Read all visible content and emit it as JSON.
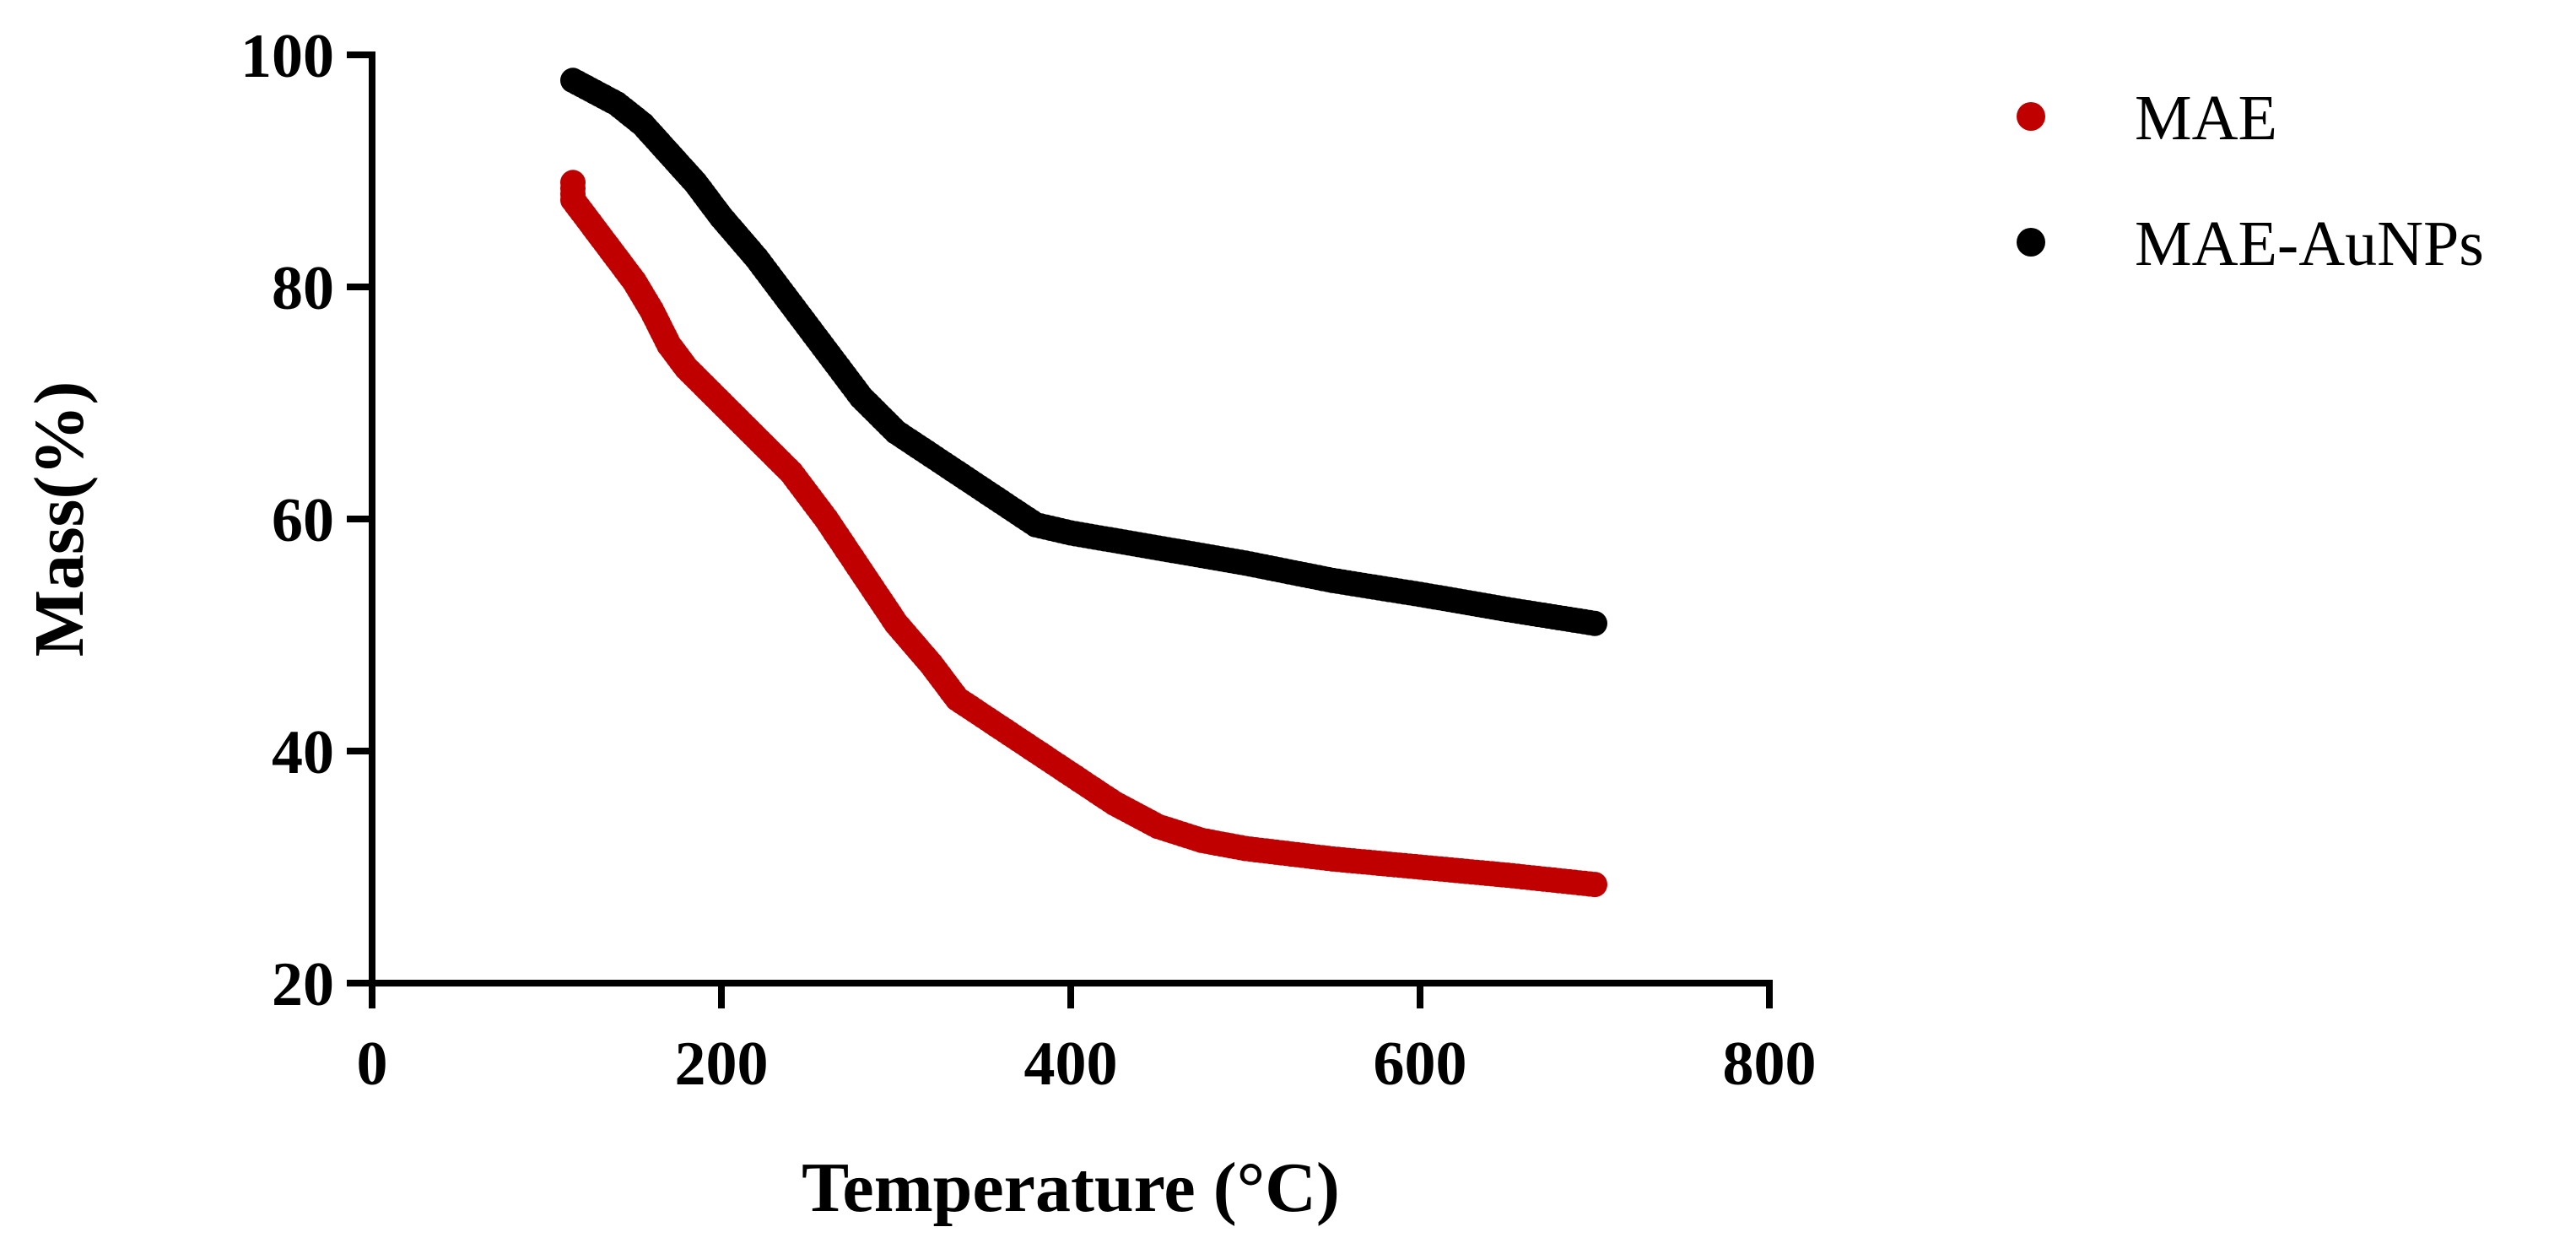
{
  "chart_data": {
    "type": "scatter",
    "title": "",
    "xlabel": "Temperature (°C)",
    "ylabel": "Mass(%)",
    "xlim": [
      0,
      800
    ],
    "ylim": [
      20,
      100
    ],
    "xticks": [
      "0",
      "200",
      "400",
      "600",
      "800"
    ],
    "yticks": [
      "20",
      "40",
      "60",
      "80",
      "100"
    ],
    "legend_position": "top-right",
    "grid": false,
    "series": [
      {
        "name": "MAE",
        "color": "#c00000",
        "points": [
          [
            115,
            89.0
          ],
          [
            115,
            87.5
          ],
          [
            120,
            86.5
          ],
          [
            130,
            84.5
          ],
          [
            140,
            82.5
          ],
          [
            150,
            80.5
          ],
          [
            160,
            78.0
          ],
          [
            170,
            75.0
          ],
          [
            180,
            73.0
          ],
          [
            190,
            71.5
          ],
          [
            200,
            70.0
          ],
          [
            220,
            67.0
          ],
          [
            240,
            64.0
          ],
          [
            260,
            60.0
          ],
          [
            280,
            55.5
          ],
          [
            300,
            51.0
          ],
          [
            320,
            47.5
          ],
          [
            335,
            44.5
          ],
          [
            350,
            43.0
          ],
          [
            375,
            40.5
          ],
          [
            400,
            38.0
          ],
          [
            425,
            35.5
          ],
          [
            450,
            33.5
          ],
          [
            475,
            32.3
          ],
          [
            500,
            31.6
          ],
          [
            550,
            30.7
          ],
          [
            600,
            30.0
          ],
          [
            650,
            29.3
          ],
          [
            700,
            28.5
          ]
        ]
      },
      {
        "name": "MAE-AuNPs",
        "color": "#000000",
        "points": [
          [
            115,
            97.8
          ],
          [
            125,
            97.0
          ],
          [
            140,
            95.8
          ],
          [
            155,
            94.0
          ],
          [
            170,
            91.5
          ],
          [
            185,
            89.0
          ],
          [
            200,
            86.0
          ],
          [
            220,
            82.5
          ],
          [
            240,
            78.5
          ],
          [
            260,
            74.5
          ],
          [
            280,
            70.5
          ],
          [
            300,
            67.5
          ],
          [
            320,
            65.5
          ],
          [
            340,
            63.5
          ],
          [
            360,
            61.5
          ],
          [
            380,
            59.5
          ],
          [
            400,
            58.8
          ],
          [
            450,
            57.5
          ],
          [
            500,
            56.2
          ],
          [
            550,
            54.7
          ],
          [
            600,
            53.5
          ],
          [
            650,
            52.2
          ],
          [
            700,
            51.0
          ]
        ]
      }
    ]
  }
}
